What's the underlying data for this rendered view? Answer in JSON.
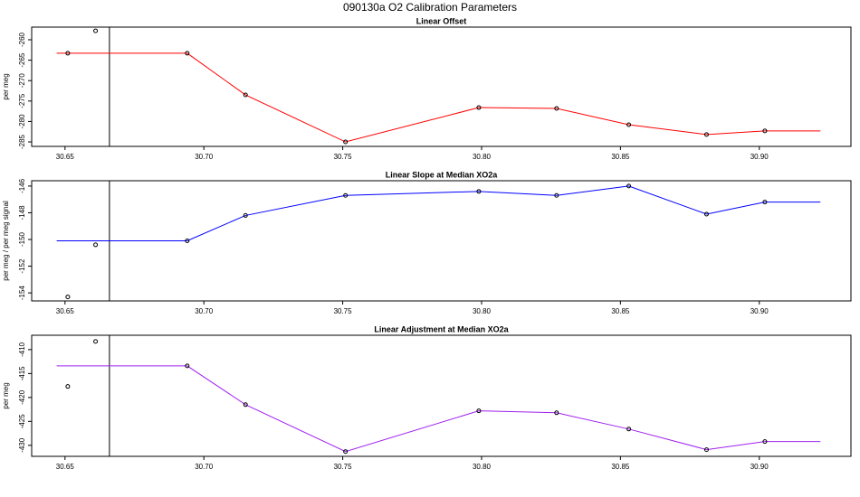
{
  "title": "090130a   O2 Calibration Parameters",
  "chart_data": [
    {
      "type": "line",
      "title": "Linear Offset",
      "ylabel": "per meg",
      "xlim": [
        30.638,
        30.933
      ],
      "ylim": [
        -286.1,
        -256.9
      ],
      "xticks": [
        30.65,
        {
          "value": 30.7,
          "label": "30.70"
        },
        30.75,
        {
          "value": 30.8,
          "label": "30.80"
        },
        30.85,
        {
          "value": 30.9,
          "label": "30.90"
        }
      ],
      "yticks": [
        -260,
        -265,
        -270,
        -275,
        -280,
        -285
      ],
      "vline": 30.666,
      "series": [
        {
          "mode": "line",
          "color": "#ff0000",
          "x": [
            30.647,
            30.694,
            30.715,
            30.751,
            30.799,
            30.827,
            30.853,
            30.881,
            30.902,
            30.922
          ],
          "values": [
            -263.3,
            -263.3,
            -273.5,
            -285,
            -276.6,
            -276.8,
            -280.8,
            -283.2,
            -282.3,
            -282.3
          ]
        },
        {
          "mode": "points",
          "color": "#000000",
          "x": [
            30.651,
            30.661,
            30.694,
            30.715,
            30.751,
            30.799,
            30.827,
            30.853,
            30.881,
            30.902
          ],
          "values": [
            -263.3,
            -257.8,
            -263.3,
            -273.5,
            -285,
            -276.6,
            -276.8,
            -280.8,
            -283.2,
            -282.3
          ]
        }
      ]
    },
    {
      "type": "line",
      "title": "Linear Slope at Median XO2a",
      "ylabel": "per meg / per meg signal",
      "xlim": [
        30.638,
        30.933
      ],
      "ylim": [
        -154.6,
        -145.6
      ],
      "xticks": [
        30.65,
        {
          "value": 30.7,
          "label": "30.70"
        },
        30.75,
        {
          "value": 30.8,
          "label": "30.80"
        },
        30.85,
        {
          "value": 30.9,
          "label": "30.90"
        }
      ],
      "yticks": [
        -146,
        -148,
        -150,
        -152,
        -154
      ],
      "vline": 30.666,
      "series": [
        {
          "mode": "line",
          "color": "#0000ff",
          "x": [
            30.647,
            30.694,
            30.715,
            30.751,
            30.799,
            30.827,
            30.853,
            30.881,
            30.902,
            30.922
          ],
          "values": [
            -150.1,
            -150.1,
            -148.2,
            -146.7,
            -146.4,
            -146.7,
            -146.0,
            -148.1,
            -147.2,
            -147.2
          ]
        },
        {
          "mode": "points",
          "color": "#000000",
          "x": [
            30.651,
            30.661,
            30.694,
            30.715,
            30.751,
            30.799,
            30.827,
            30.853,
            30.881,
            30.902
          ],
          "values": [
            -154.3,
            -150.4,
            -150.1,
            -148.2,
            -146.7,
            -146.4,
            -146.7,
            -146.0,
            -148.1,
            -147.2
          ]
        }
      ]
    },
    {
      "type": "line",
      "title": "Linear Adjustment at Median XO2a",
      "ylabel": "per meg",
      "xlim": [
        30.638,
        30.933
      ],
      "ylim": [
        -432.3,
        -407
      ],
      "xticks": [
        30.65,
        {
          "value": 30.7,
          "label": "30.70"
        },
        30.75,
        {
          "value": 30.8,
          "label": "30.80"
        },
        30.85,
        {
          "value": 30.9,
          "label": "30.90"
        }
      ],
      "yticks": [
        -410,
        -415,
        -420,
        -425,
        -430
      ],
      "vline": 30.666,
      "series": [
        {
          "mode": "line",
          "color": "#a020f0",
          "x": [
            30.647,
            30.694,
            30.715,
            30.751,
            30.799,
            30.827,
            30.853,
            30.881,
            30.902,
            30.922
          ],
          "values": [
            -413.4,
            -413.4,
            -421.5,
            -431.3,
            -422.8,
            -423.2,
            -426.6,
            -430.9,
            -429.2,
            -429.2
          ]
        },
        {
          "mode": "points",
          "color": "#000000",
          "x": [
            30.651,
            30.661,
            30.694,
            30.715,
            30.751,
            30.799,
            30.827,
            30.853,
            30.881,
            30.902
          ],
          "values": [
            -417.7,
            -408.3,
            -413.4,
            -421.5,
            -431.3,
            -422.8,
            -423.2,
            -426.6,
            -430.9,
            -429.2
          ]
        }
      ]
    }
  ]
}
